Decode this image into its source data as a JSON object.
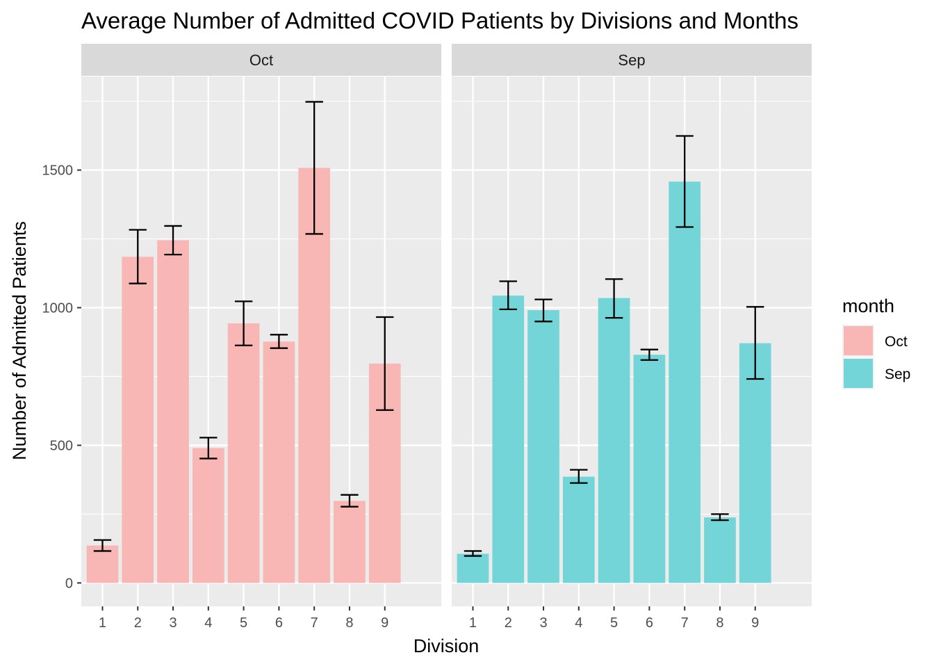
{
  "chart_data": {
    "type": "bar",
    "title": "Average Number of Admitted COVID Patients by Divisions and Months",
    "xlabel": "Division",
    "ylabel": "Number of Admitted Patients",
    "categories": [
      "1",
      "2",
      "3",
      "4",
      "5",
      "6",
      "7",
      "8",
      "9"
    ],
    "ylim": [
      -85,
      1840
    ],
    "yticks": [
      0,
      500,
      1000,
      1500
    ],
    "grid": true,
    "legend": {
      "title": "month",
      "position": "right",
      "entries": [
        {
          "label": "Oct",
          "color": "#F8B7B4"
        },
        {
          "label": "Sep",
          "color": "#73D5D8"
        }
      ]
    },
    "panels": [
      {
        "strip": "Oct",
        "color": "#F8B7B4",
        "values": [
          136,
          1185,
          1245,
          490,
          943,
          877,
          1508,
          298,
          797
        ],
        "error_low": [
          116,
          1088,
          1193,
          452,
          863,
          853,
          1268,
          277,
          628
        ],
        "error_high": [
          156,
          1283,
          1297,
          528,
          1023,
          902,
          1748,
          320,
          966
        ]
      },
      {
        "strip": "Sep",
        "color": "#73D5D8",
        "values": [
          106,
          1044,
          991,
          386,
          1035,
          829,
          1458,
          238,
          871
        ],
        "error_low": [
          98,
          994,
          950,
          363,
          963,
          810,
          1293,
          228,
          741
        ],
        "error_high": [
          116,
          1096,
          1030,
          411,
          1104,
          848,
          1624,
          250,
          1003
        ]
      }
    ]
  }
}
